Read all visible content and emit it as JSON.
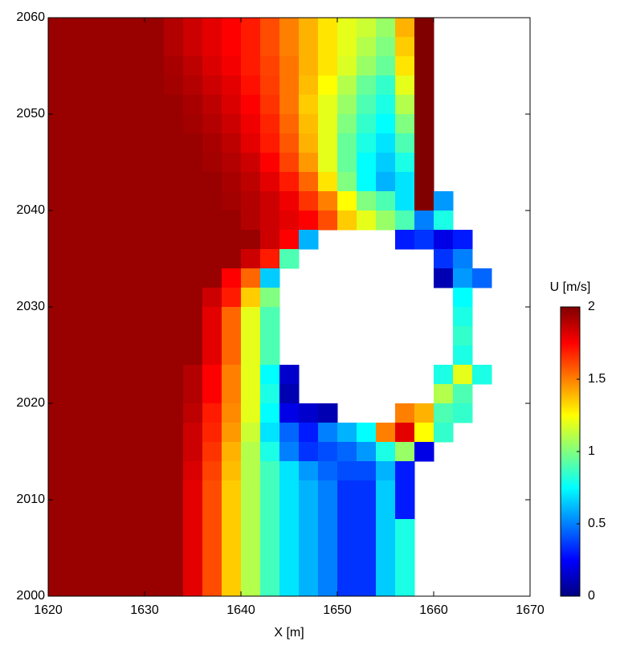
{
  "chart_data": {
    "type": "heatmap",
    "colormap": "jet",
    "xlabel": "X [m]",
    "xlim": [
      1620,
      1670
    ],
    "ylim": [
      2000,
      2060
    ],
    "xticks": [
      1620,
      1630,
      1640,
      1650,
      1660,
      1670
    ],
    "yticks": [
      2000,
      2010,
      2020,
      2030,
      2040,
      2050,
      2060
    ],
    "x": [
      1621,
      1623,
      1625,
      1627,
      1629,
      1631,
      1633,
      1635,
      1637,
      1639,
      1641,
      1643,
      1645,
      1647,
      1649,
      1651,
      1653,
      1655,
      1657,
      1659,
      1661,
      1663,
      1665,
      1667,
      1669
    ],
    "y": [
      2059,
      2057,
      2055,
      2053,
      2051,
      2049,
      2047,
      2045,
      2043,
      2041,
      2039,
      2037,
      2035,
      2033,
      2031,
      2029,
      2027,
      2025,
      2023,
      2021,
      2019,
      2017,
      2015,
      2013,
      2011,
      2009,
      2007,
      2005,
      2003,
      2001
    ],
    "values": [
      [
        1.95,
        1.95,
        1.95,
        1.95,
        1.95,
        1.95,
        1.9,
        1.85,
        1.8,
        1.75,
        1.7,
        1.6,
        1.5,
        1.4,
        1.3,
        1.2,
        1.15,
        1.05,
        1.4,
        2.0,
        null,
        null,
        null,
        null,
        null
      ],
      [
        1.95,
        1.95,
        1.95,
        1.95,
        1.95,
        1.95,
        1.9,
        1.85,
        1.8,
        1.75,
        1.7,
        1.6,
        1.5,
        1.4,
        1.3,
        1.2,
        1.1,
        1.0,
        1.35,
        2.0,
        null,
        null,
        null,
        null,
        null
      ],
      [
        1.95,
        1.95,
        1.95,
        1.95,
        1.95,
        1.95,
        1.92,
        1.88,
        1.82,
        1.77,
        1.7,
        1.62,
        1.52,
        1.4,
        1.3,
        1.18,
        1.05,
        0.95,
        1.3,
        2.0,
        null,
        null,
        null,
        null,
        null
      ],
      [
        1.95,
        1.95,
        1.95,
        1.95,
        1.95,
        1.95,
        1.93,
        1.9,
        1.85,
        1.8,
        1.72,
        1.63,
        1.52,
        1.38,
        1.25,
        1.1,
        0.95,
        0.85,
        1.2,
        2.0,
        null,
        null,
        null,
        null,
        null
      ],
      [
        1.95,
        1.95,
        1.95,
        1.95,
        1.95,
        1.95,
        1.95,
        1.92,
        1.88,
        1.82,
        1.75,
        1.65,
        1.52,
        1.35,
        1.2,
        1.05,
        0.9,
        0.8,
        1.1,
        2.0,
        null,
        null,
        null,
        null,
        null
      ],
      [
        1.95,
        1.95,
        1.95,
        1.95,
        1.95,
        1.95,
        1.95,
        1.93,
        1.9,
        1.85,
        1.78,
        1.68,
        1.55,
        1.38,
        1.2,
        1.0,
        0.85,
        0.75,
        1.0,
        2.0,
        null,
        null,
        null,
        null,
        null
      ],
      [
        1.95,
        1.95,
        1.95,
        1.95,
        1.95,
        1.95,
        1.95,
        1.95,
        1.92,
        1.88,
        1.8,
        1.7,
        1.58,
        1.4,
        1.2,
        0.95,
        0.8,
        0.7,
        0.9,
        2.0,
        null,
        null,
        null,
        null,
        null
      ],
      [
        1.95,
        1.95,
        1.95,
        1.95,
        1.95,
        1.95,
        1.95,
        1.95,
        1.93,
        1.9,
        1.85,
        1.75,
        1.62,
        1.45,
        1.2,
        0.95,
        0.75,
        0.65,
        0.8,
        2.0,
        null,
        null,
        null,
        null,
        null
      ],
      [
        1.95,
        1.95,
        1.95,
        1.95,
        1.95,
        1.95,
        1.95,
        1.95,
        1.95,
        1.92,
        1.88,
        1.8,
        1.7,
        1.55,
        1.3,
        1.0,
        0.75,
        0.6,
        0.7,
        2.0,
        null,
        null,
        null,
        null,
        null
      ],
      [
        1.95,
        1.95,
        1.95,
        1.95,
        1.95,
        1.95,
        1.95,
        1.95,
        1.95,
        1.93,
        1.9,
        1.85,
        1.78,
        1.65,
        1.5,
        1.25,
        1.0,
        0.9,
        0.7,
        2.0,
        0.55,
        null,
        null,
        null,
        null
      ],
      [
        1.95,
        1.95,
        1.95,
        1.95,
        1.95,
        1.95,
        1.95,
        1.95,
        1.95,
        1.95,
        1.9,
        1.85,
        1.8,
        1.75,
        1.6,
        1.35,
        1.2,
        1.05,
        0.9,
        0.5,
        0.8,
        null,
        null,
        null,
        null
      ],
      [
        1.95,
        1.95,
        1.95,
        1.95,
        1.95,
        1.95,
        1.95,
        1.95,
        1.95,
        1.95,
        1.95,
        1.85,
        1.75,
        0.6,
        null,
        null,
        null,
        null,
        0.3,
        0.35,
        0.2,
        0.3,
        null,
        null,
        null
      ],
      [
        1.95,
        1.95,
        1.95,
        1.95,
        1.95,
        1.95,
        1.95,
        1.95,
        1.95,
        1.95,
        1.85,
        1.7,
        0.9,
        null,
        null,
        null,
        null,
        null,
        null,
        null,
        0.35,
        0.5,
        null,
        null,
        null
      ],
      [
        1.95,
        1.95,
        1.95,
        1.95,
        1.95,
        1.95,
        1.95,
        1.95,
        1.95,
        1.75,
        1.55,
        0.65,
        null,
        null,
        null,
        null,
        null,
        null,
        null,
        null,
        0.1,
        0.55,
        0.45,
        null,
        null
      ],
      [
        1.95,
        1.95,
        1.95,
        1.95,
        1.95,
        1.95,
        1.95,
        1.95,
        1.85,
        1.7,
        1.35,
        1.0,
        null,
        null,
        null,
        null,
        null,
        null,
        null,
        null,
        null,
        0.75,
        null,
        null,
        null
      ],
      [
        1.95,
        1.95,
        1.95,
        1.95,
        1.95,
        1.95,
        1.95,
        1.95,
        1.8,
        1.55,
        1.2,
        0.9,
        null,
        null,
        null,
        null,
        null,
        null,
        null,
        null,
        null,
        0.8,
        null,
        null,
        null
      ],
      [
        1.95,
        1.95,
        1.95,
        1.95,
        1.95,
        1.95,
        1.95,
        1.95,
        1.8,
        1.55,
        1.2,
        0.9,
        null,
        null,
        null,
        null,
        null,
        null,
        null,
        null,
        null,
        0.85,
        null,
        null,
        null
      ],
      [
        1.95,
        1.95,
        1.95,
        1.95,
        1.95,
        1.95,
        1.95,
        1.95,
        1.8,
        1.55,
        1.2,
        0.9,
        null,
        null,
        null,
        null,
        null,
        null,
        null,
        null,
        null,
        0.8,
        null,
        null,
        null
      ],
      [
        1.95,
        1.95,
        1.95,
        1.95,
        1.95,
        1.95,
        1.95,
        1.9,
        1.75,
        1.5,
        1.2,
        0.75,
        0.15,
        null,
        null,
        null,
        null,
        null,
        null,
        null,
        0.8,
        1.2,
        0.8,
        null,
        null
      ],
      [
        1.95,
        1.95,
        1.95,
        1.95,
        1.95,
        1.95,
        1.95,
        1.9,
        1.75,
        1.5,
        1.2,
        0.8,
        0.1,
        null,
        null,
        null,
        null,
        null,
        null,
        null,
        1.1,
        0.9,
        null,
        null,
        null
      ],
      [
        1.95,
        1.95,
        1.95,
        1.95,
        1.95,
        1.95,
        1.95,
        1.88,
        1.7,
        1.48,
        1.2,
        0.75,
        0.2,
        0.15,
        0.1,
        null,
        null,
        null,
        1.5,
        1.4,
        0.9,
        0.85,
        null,
        null,
        null
      ],
      [
        1.95,
        1.95,
        1.95,
        1.95,
        1.95,
        1.95,
        1.95,
        1.85,
        1.68,
        1.45,
        1.15,
        0.7,
        0.45,
        0.3,
        0.5,
        0.6,
        0.75,
        1.5,
        1.8,
        1.25,
        0.85,
        null,
        null,
        null,
        null
      ],
      [
        1.95,
        1.95,
        1.95,
        1.95,
        1.95,
        1.95,
        1.95,
        1.85,
        1.65,
        1.4,
        1.1,
        0.8,
        0.5,
        0.35,
        0.4,
        0.45,
        0.55,
        0.8,
        1.05,
        0.2,
        null,
        null,
        null,
        null,
        null
      ],
      [
        1.95,
        1.95,
        1.95,
        1.95,
        1.95,
        1.95,
        1.95,
        1.82,
        1.62,
        1.38,
        1.1,
        0.88,
        0.7,
        0.55,
        0.45,
        0.4,
        0.4,
        0.6,
        0.3,
        null,
        null,
        null,
        null,
        null,
        null
      ],
      [
        1.95,
        1.95,
        1.95,
        1.95,
        1.95,
        1.95,
        1.95,
        1.8,
        1.6,
        1.35,
        1.1,
        0.88,
        0.7,
        0.6,
        0.5,
        0.35,
        0.35,
        0.65,
        0.3,
        null,
        null,
        null,
        null,
        null,
        null
      ],
      [
        1.95,
        1.95,
        1.95,
        1.95,
        1.95,
        1.95,
        1.95,
        1.8,
        1.6,
        1.35,
        1.1,
        0.88,
        0.7,
        0.6,
        0.5,
        0.35,
        0.35,
        0.65,
        0.3,
        null,
        null,
        null,
        null,
        null,
        null
      ],
      [
        1.95,
        1.95,
        1.95,
        1.95,
        1.95,
        1.95,
        1.95,
        1.8,
        1.6,
        1.35,
        1.1,
        0.88,
        0.7,
        0.6,
        0.5,
        0.35,
        0.35,
        0.65,
        0.8,
        null,
        null,
        null,
        null,
        null,
        null
      ],
      [
        1.95,
        1.95,
        1.95,
        1.95,
        1.95,
        1.95,
        1.95,
        1.8,
        1.6,
        1.35,
        1.1,
        0.88,
        0.7,
        0.6,
        0.5,
        0.35,
        0.35,
        0.65,
        0.8,
        null,
        null,
        null,
        null,
        null,
        null
      ],
      [
        1.95,
        1.95,
        1.95,
        1.95,
        1.95,
        1.95,
        1.95,
        1.8,
        1.6,
        1.35,
        1.1,
        0.88,
        0.7,
        0.6,
        0.5,
        0.35,
        0.35,
        0.65,
        0.8,
        null,
        null,
        null,
        null,
        null,
        null
      ],
      [
        1.95,
        1.95,
        1.95,
        1.95,
        1.95,
        1.95,
        1.95,
        1.8,
        1.6,
        1.35,
        1.1,
        0.88,
        0.7,
        0.6,
        0.5,
        0.35,
        0.35,
        0.65,
        0.8,
        null,
        null,
        null,
        null,
        null,
        null
      ]
    ],
    "colorbar": {
      "label": "U [m/s]",
      "lim": [
        0,
        2
      ],
      "ticks": [
        0,
        0.5,
        1,
        1.5,
        2
      ]
    }
  }
}
